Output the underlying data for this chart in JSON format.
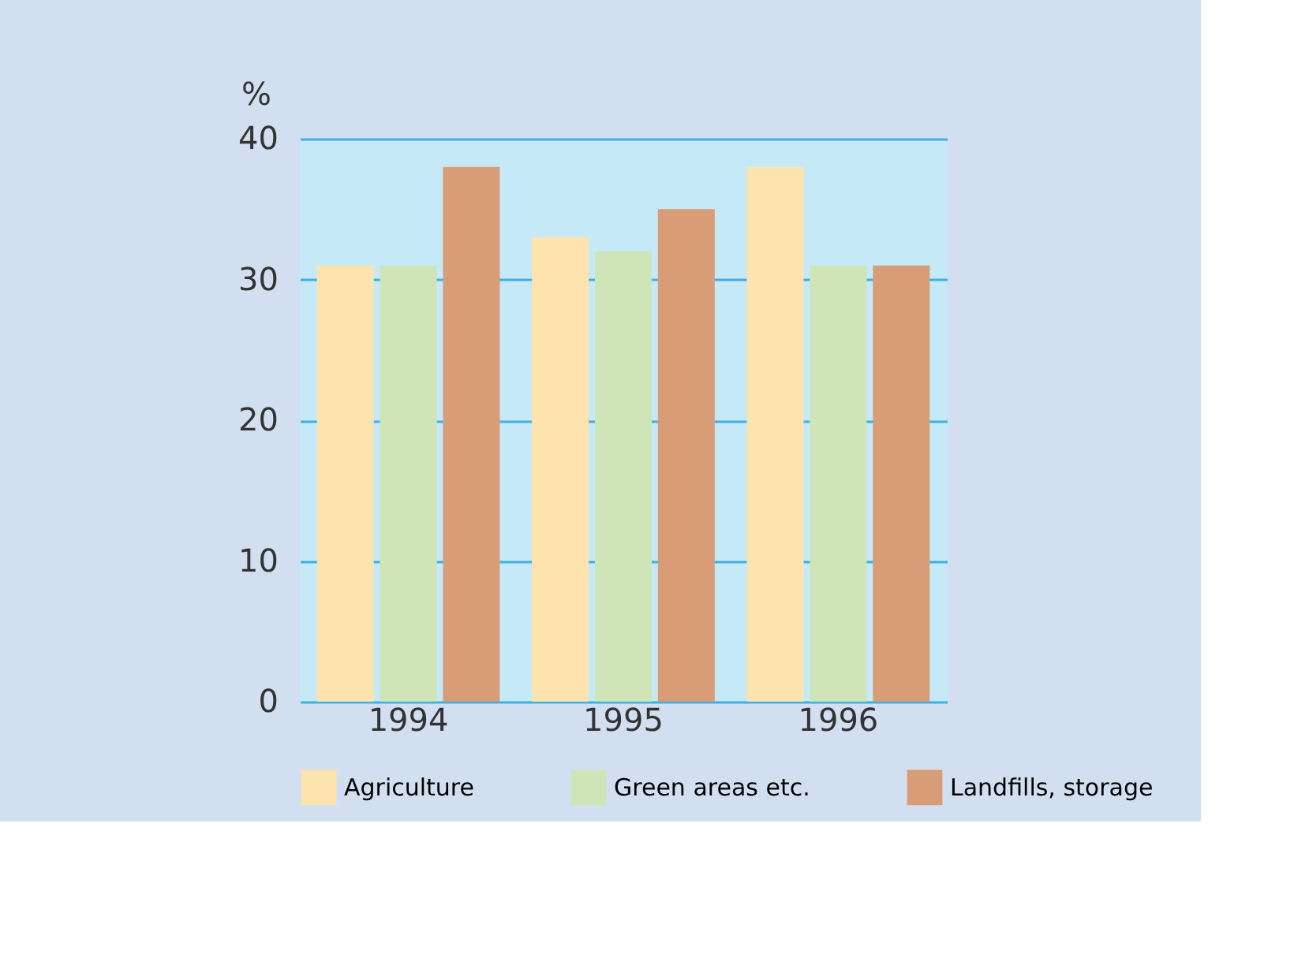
{
  "chart_data": {
    "type": "bar",
    "ylabel": "%",
    "categories": [
      "1994",
      "1995",
      "1996"
    ],
    "series": [
      {
        "name": "Agriculture",
        "color": "#fde3ae",
        "values": [
          31,
          33,
          38
        ]
      },
      {
        "name": "Green areas etc.",
        "color": "#cfe5b8",
        "values": [
          31,
          32,
          31
        ]
      },
      {
        "name": "Landfills, storage",
        "color": "#d89d76",
        "values": [
          38,
          35,
          31
        ]
      }
    ],
    "ylim": [
      0,
      40
    ],
    "yticks": [
      0,
      10,
      20,
      30,
      40
    ],
    "grid": "y",
    "legend": "bottom"
  }
}
